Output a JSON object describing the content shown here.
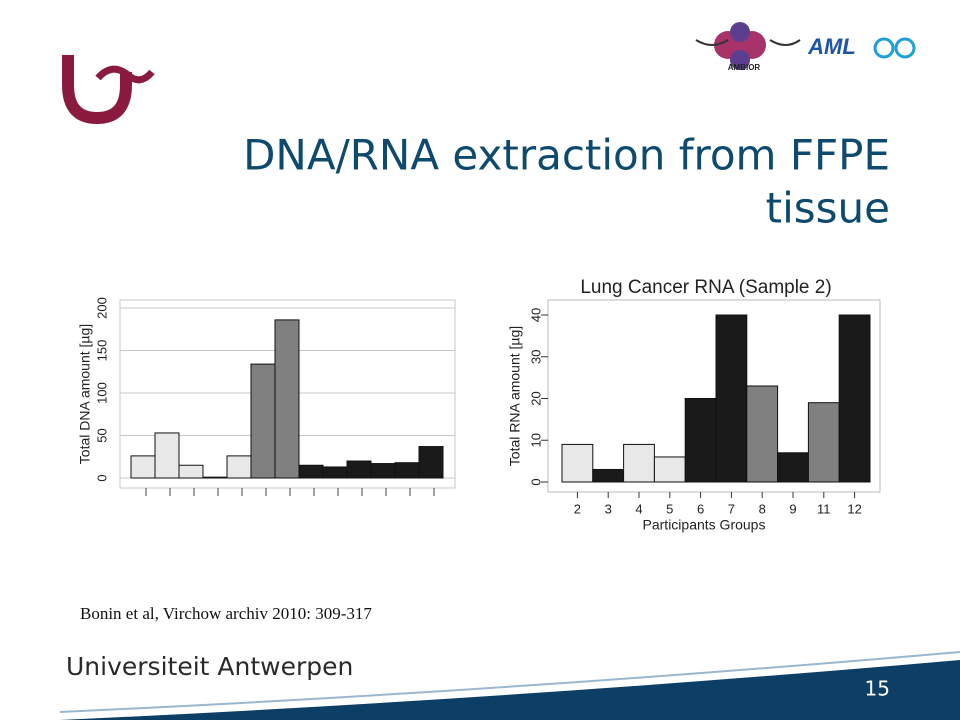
{
  "slide": {
    "title_lines": [
      "DNA/RNA extraction from FFPE",
      "tissue"
    ],
    "logos": [
      "AMBIOR",
      "AML"
    ],
    "citation": "Bonin et al, Virchow archiv 2010: 309-317",
    "footer": "Universiteit Antwerpen",
    "page_number": "15"
  },
  "chart_data": [
    {
      "type": "bar",
      "ylabel": "Total DNA amount [µg]",
      "categories": [
        null,
        null,
        null,
        null,
        null,
        null,
        null,
        null,
        null,
        null,
        null,
        null,
        null
      ],
      "values": [
        26,
        53,
        15,
        1,
        26,
        134,
        186,
        15,
        13,
        20,
        17,
        18,
        37
      ],
      "colors": [
        "#e8e8e8",
        "#e8e8e8",
        "#e8e8e8",
        "#e8e8e8",
        "#e8e8e8",
        "#808080",
        "#808080",
        "#1a1a1a",
        "#1a1a1a",
        "#1a1a1a",
        "#1a1a1a",
        "#1a1a1a",
        "#1a1a1a"
      ],
      "ylim": [
        0,
        200
      ],
      "yticks": [
        0,
        50,
        100,
        150,
        200
      ],
      "grid": true
    },
    {
      "type": "bar",
      "title": "Lung Cancer RNA (Sample 2)",
      "ylabel": "Total RNA amount [µg]",
      "xlabel": "Participants Groups",
      "categories": [
        "2",
        "3",
        "4",
        "5",
        "6",
        "7",
        "8",
        "9",
        "11",
        "12"
      ],
      "values": [
        9,
        3,
        9,
        6,
        20,
        40,
        23,
        7,
        19,
        40
      ],
      "colors": [
        "#e8e8e8",
        "#1a1a1a",
        "#e8e8e8",
        "#e8e8e8",
        "#1a1a1a",
        "#1a1a1a",
        "#808080",
        "#1a1a1a",
        "#808080",
        "#1a1a1a"
      ],
      "ylim": [
        0,
        40
      ],
      "yticks": [
        0,
        10,
        20,
        30,
        40
      ],
      "grid": false
    }
  ]
}
